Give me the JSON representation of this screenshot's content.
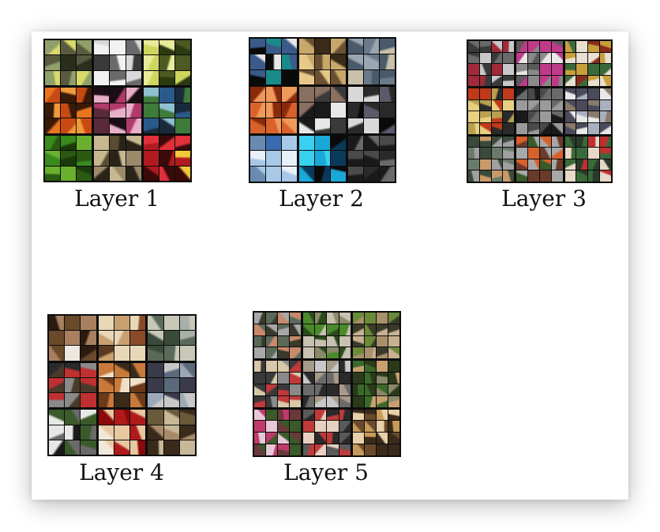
{
  "figure": {
    "layers": [
      {
        "label": "Layer 1",
        "cells_per_block": 3,
        "palettes": [
          [
            "#8fa06a",
            "#2a2f1c",
            "#d8d96a",
            "#5a5a40"
          ],
          [
            "#d9d9d9",
            "#3a3a3a",
            "#f2f2f2",
            "#6a6a6a"
          ],
          [
            "#cfd65e",
            "#2c3a12",
            "#e8ec9a",
            "#4d5a22"
          ],
          [
            "#e8741e",
            "#3a1a06",
            "#c84a12",
            "#f09a3a"
          ],
          [
            "#b03a6a",
            "#1c0c14",
            "#e8b0c8",
            "#5a2a3a"
          ],
          [
            "#3e7a3a",
            "#1a2a3a",
            "#8fc0d0",
            "#2a5a8a"
          ],
          [
            "#3a8a1e",
            "#1a3a0a",
            "#6ab02e",
            "#2a5a10"
          ],
          [
            "#9a8a6a",
            "#2a2418",
            "#c8b890",
            "#5a4c30"
          ],
          [
            "#e0303a",
            "#3a0a0a",
            "#f2c83a",
            "#b01a20"
          ]
        ]
      },
      {
        "label": "Layer 2",
        "cells_per_block": 3,
        "palettes": [
          [
            "#1a8a8a",
            "#0a0a0a",
            "#e8e8e8",
            "#3a5a8a"
          ],
          [
            "#c8a86a",
            "#6a5030",
            "#e8c88a",
            "#3a2a18"
          ],
          [
            "#9aa6b0",
            "#6a7a8a",
            "#c8c0a8",
            "#4a5a6a"
          ],
          [
            "#d8622a",
            "#8a2a0a",
            "#f09a5a",
            "#b84a1a"
          ],
          [
            "#3a3a3a",
            "#e8e8e8",
            "#8a7060",
            "#1a1a1a"
          ],
          [
            "#2a2a2a",
            "#d8d8d8",
            "#5a5a6a",
            "#0a0a0a"
          ],
          [
            "#a8c8e8",
            "#3a6ab0",
            "#e8f0f8",
            "#6a8ab0"
          ],
          [
            "#1aa8d8",
            "#0a0a0a",
            "#0a3a5a",
            "#3ad0f0"
          ],
          [
            "#4a4a4a",
            "#2a2a2a",
            "#6a6a6a",
            "#1a1a1a"
          ]
        ]
      },
      {
        "label": "Layer 3",
        "cells_per_block": 4,
        "palettes": [
          [
            "#6a6a6a",
            "#c8c8c8",
            "#3a3a3a",
            "#a02a3a"
          ],
          [
            "#e8e8e8",
            "#8a8a8a",
            "#c03a8a",
            "#5a5a5a"
          ],
          [
            "#3a6a3a",
            "#c8a03a",
            "#8a2a1a",
            "#e8e0d0"
          ],
          [
            "#b8a050",
            "#2a2a2a",
            "#e8d080",
            "#c03a1a"
          ],
          [
            "#4a4a4a",
            "#9a9a9a",
            "#1a1a1a",
            "#6a6a6a"
          ],
          [
            "#e8e8e8",
            "#a8b0c0",
            "#4a4a5a",
            "#8a7a6a"
          ],
          [
            "#6a7a6a",
            "#c89a6a",
            "#3a4a3a",
            "#a0a0a0"
          ],
          [
            "#d8602a",
            "#6a3a2a",
            "#3a5a2a",
            "#a8a8a8"
          ],
          [
            "#3a6a3a",
            "#c03030",
            "#e8d8c8",
            "#2a3a2a"
          ]
        ]
      },
      {
        "label": "Layer 4",
        "cells_per_block": 3,
        "palettes": [
          [
            "#6a4a2a",
            "#f0e8e0",
            "#2a1a10",
            "#a88060"
          ],
          [
            "#c8a070",
            "#8a4a2a",
            "#e8d8b8",
            "#5a3a20"
          ],
          [
            "#a8b0a8",
            "#5a6a5a",
            "#c8c8b8",
            "#3a4a3a"
          ],
          [
            "#c03030",
            "#4a3a2a",
            "#8a8a8a",
            "#2a2a2a"
          ],
          [
            "#c87a3a",
            "#f0e0c8",
            "#6a3a1a",
            "#3a2a1a"
          ],
          [
            "#9aa8b8",
            "#5a6a7a",
            "#c8c8c8",
            "#3a3a4a"
          ],
          [
            "#3a5a2a",
            "#e8e8e8",
            "#6a6a6a",
            "#1a1a1a"
          ],
          [
            "#b01a1a",
            "#f0e8d8",
            "#8a0a0a",
            "#e8c8a0"
          ],
          [
            "#a88a6a",
            "#6a5a3a",
            "#c8b898",
            "#3a2a1a"
          ]
        ]
      },
      {
        "label": "Layer 5",
        "cells_per_block": 4,
        "palettes": [
          [
            "#5a6a5a",
            "#a8a8a8",
            "#3a3a2a",
            "#c88a6a"
          ],
          [
            "#4a8a2a",
            "#c8c0b0",
            "#2a4a1a",
            "#8a8a6a"
          ],
          [
            "#a8906a",
            "#6a8a3a",
            "#c8b090",
            "#3a3a2a"
          ],
          [
            "#8a8a8a",
            "#c03a3a",
            "#3a3a3a",
            "#d8c8a8"
          ],
          [
            "#6a6a6a",
            "#a89a8a",
            "#2a2a2a",
            "#c8c8c8"
          ],
          [
            "#3a6a2a",
            "#c8a070",
            "#8a8a6a",
            "#2a3a1a"
          ],
          [
            "#c03a6a",
            "#3a5a2a",
            "#e8c8d8",
            "#6a3a3a"
          ],
          [
            "#2a2a2a",
            "#c03a3a",
            "#e8d0c0",
            "#5a5a5a"
          ],
          [
            "#c89a5a",
            "#6a4a2a",
            "#e8d0a8",
            "#3a2a1a"
          ]
        ]
      }
    ]
  }
}
